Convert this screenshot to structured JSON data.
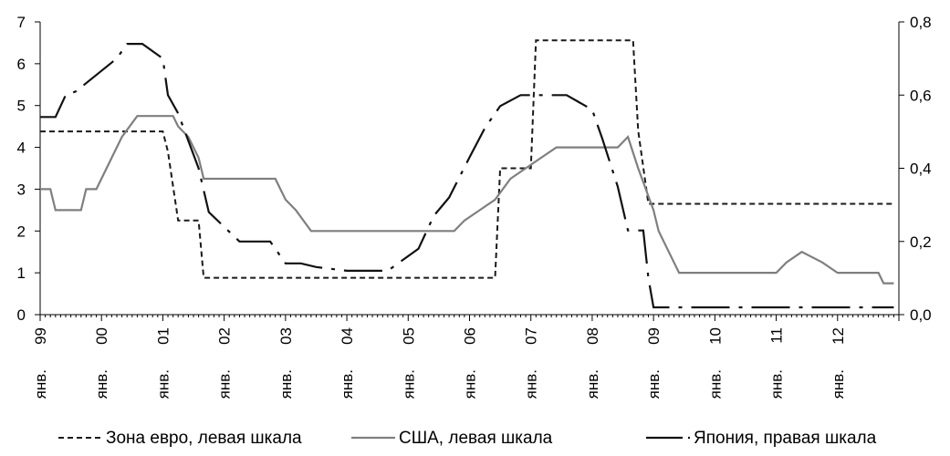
{
  "chart_data": {
    "type": "line",
    "title": "",
    "x_unit": "month",
    "x_tick_labels": [
      {
        "year": "99",
        "month": "янв."
      },
      {
        "year": "00",
        "month": "янв."
      },
      {
        "year": "01",
        "month": "янв."
      },
      {
        "year": "02",
        "month": "янв."
      },
      {
        "year": "03",
        "month": "янв."
      },
      {
        "year": "04",
        "month": "янв."
      },
      {
        "year": "05",
        "month": "янв."
      },
      {
        "year": "06",
        "month": "янв."
      },
      {
        "year": "07",
        "month": "янв."
      },
      {
        "year": "08",
        "month": "янв."
      },
      {
        "year": "09",
        "month": "янв."
      },
      {
        "year": "10",
        "month": "янв."
      },
      {
        "year": "11",
        "month": "янв."
      },
      {
        "year": "12",
        "month": "янв."
      }
    ],
    "xlim": [
      "1999-01",
      "2012-12"
    ],
    "y_left": {
      "ylim": [
        0,
        7
      ],
      "ticks": [
        "0",
        "1",
        "2",
        "3",
        "4",
        "5",
        "6",
        "7"
      ]
    },
    "y_right": {
      "ylim": [
        0,
        0.8
      ],
      "ticks": [
        "0,0",
        "0,2",
        "0,4",
        "0,6",
        "0,8"
      ]
    },
    "grid": false,
    "legend_position": "bottom",
    "series": [
      {
        "name": "Зона евро, левая шкала",
        "axis": "left",
        "color": "#1a1a1a",
        "dash": "dashed",
        "points": [
          [
            "1999-01",
            4.38
          ],
          [
            "2001-01",
            4.38
          ],
          [
            "2001-02",
            3.9
          ],
          [
            "2001-04",
            2.25
          ],
          [
            "2001-08",
            2.25
          ],
          [
            "2001-09",
            0.88
          ],
          [
            "2006-06",
            0.88
          ],
          [
            "2006-07",
            3.5
          ],
          [
            "2007-01",
            3.5
          ],
          [
            "2007-02",
            6.56
          ],
          [
            "2008-09",
            6.56
          ],
          [
            "2008-10",
            4.4
          ],
          [
            "2008-12",
            2.65
          ],
          [
            "2012-12",
            2.65
          ]
        ]
      },
      {
        "name": "США, левая шкала",
        "axis": "left",
        "color": "#7f7f7f",
        "dash": "solid",
        "points": [
          [
            "1999-01",
            3.0
          ],
          [
            "1999-03",
            3.0
          ],
          [
            "1999-04",
            2.5
          ],
          [
            "1999-09",
            2.5
          ],
          [
            "1999-10",
            3.0
          ],
          [
            "1999-12",
            3.0
          ],
          [
            "2000-03",
            3.75
          ],
          [
            "2000-05",
            4.25
          ],
          [
            "2000-08",
            4.75
          ],
          [
            "2001-03",
            4.75
          ],
          [
            "2001-04",
            4.5
          ],
          [
            "2001-06",
            4.25
          ],
          [
            "2001-08",
            3.75
          ],
          [
            "2001-09",
            3.25
          ],
          [
            "2002-11",
            3.25
          ],
          [
            "2003-01",
            2.75
          ],
          [
            "2003-03",
            2.5
          ],
          [
            "2003-06",
            2.0
          ],
          [
            "2005-10",
            2.0
          ],
          [
            "2005-12",
            2.25
          ],
          [
            "2006-03",
            2.5
          ],
          [
            "2006-06",
            2.75
          ],
          [
            "2006-09",
            3.25
          ],
          [
            "2006-12",
            3.5
          ],
          [
            "2007-03",
            3.75
          ],
          [
            "2007-06",
            4.0
          ],
          [
            "2008-06",
            4.0
          ],
          [
            "2008-08",
            4.25
          ],
          [
            "2008-10",
            3.5
          ],
          [
            "2009-01",
            2.5
          ],
          [
            "2009-02",
            2.0
          ],
          [
            "2009-05",
            1.25
          ],
          [
            "2009-06",
            1.0
          ],
          [
            "2011-01",
            1.0
          ],
          [
            "2011-03",
            1.25
          ],
          [
            "2011-06",
            1.5
          ],
          [
            "2011-10",
            1.25
          ],
          [
            "2012-01",
            1.0
          ],
          [
            "2012-09",
            1.0
          ],
          [
            "2012-10",
            0.75
          ],
          [
            "2012-12",
            0.75
          ]
        ]
      },
      {
        "name": "Япония, правая шкала",
        "axis": "right",
        "color": "#111111",
        "dash": "dashdot",
        "points": [
          [
            "1999-01",
            0.54
          ],
          [
            "1999-04",
            0.54
          ],
          [
            "1999-06",
            0.6
          ],
          [
            "1999-08",
            0.61
          ],
          [
            "2000-04",
            0.7
          ],
          [
            "2000-06",
            0.74
          ],
          [
            "2000-09",
            0.74
          ],
          [
            "2001-01",
            0.7
          ],
          [
            "2001-02",
            0.6
          ],
          [
            "2001-04",
            0.55
          ],
          [
            "2001-08",
            0.4
          ],
          [
            "2001-10",
            0.28
          ],
          [
            "2002-04",
            0.2
          ],
          [
            "2002-08",
            0.2
          ],
          [
            "2002-10",
            0.2
          ],
          [
            "2003-01",
            0.14
          ],
          [
            "2003-04",
            0.14
          ],
          [
            "2003-07",
            0.13
          ],
          [
            "2004-01",
            0.12
          ],
          [
            "2004-09",
            0.12
          ],
          [
            "2005-03",
            0.18
          ],
          [
            "2005-06",
            0.27
          ],
          [
            "2005-09",
            0.32
          ],
          [
            "2006-01",
            0.43
          ],
          [
            "2006-04",
            0.51
          ],
          [
            "2006-07",
            0.57
          ],
          [
            "2006-11",
            0.6
          ],
          [
            "2007-08",
            0.6
          ],
          [
            "2008-01",
            0.56
          ],
          [
            "2008-03",
            0.48
          ],
          [
            "2008-06",
            0.35
          ],
          [
            "2008-08",
            0.23
          ],
          [
            "2008-11",
            0.23
          ],
          [
            "2008-12",
            0.1
          ],
          [
            "2009-01",
            0.02
          ],
          [
            "2012-12",
            0.02
          ]
        ]
      }
    ]
  }
}
